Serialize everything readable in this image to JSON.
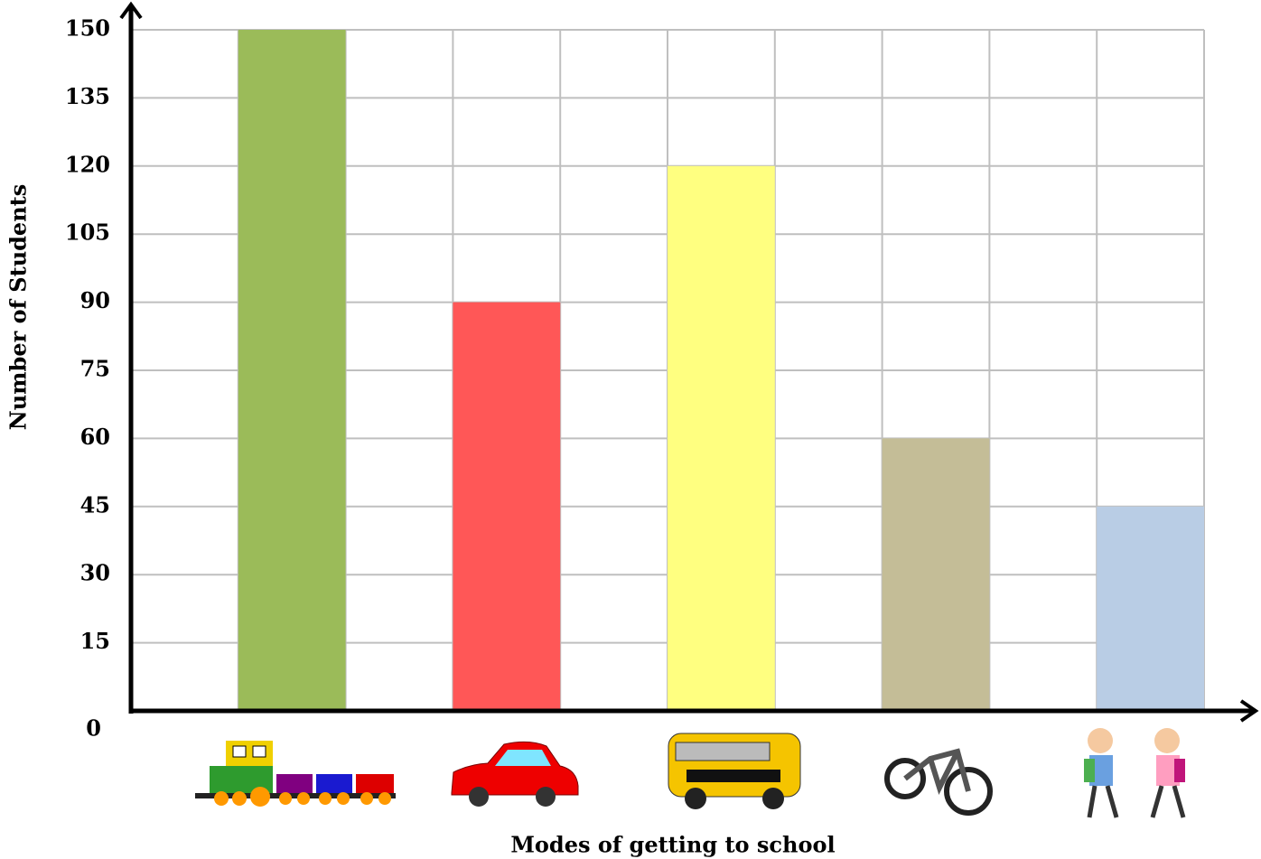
{
  "chart_data": {
    "type": "bar",
    "x_label": "Modes of getting to school",
    "y_label": "Number of Students",
    "categories": [
      null,
      null,
      null,
      null,
      null
    ],
    "values": [
      150,
      90,
      120,
      60,
      45
    ],
    "colors": [
      "#9bbb59",
      "#ff5757",
      "#ffff80",
      "#c4bd97",
      "#b9cde5"
    ],
    "ylim": [
      0,
      150
    ],
    "yticks": [
      0,
      15,
      30,
      45,
      60,
      75,
      90,
      105,
      120,
      135,
      150
    ],
    "grid": true
  }
}
